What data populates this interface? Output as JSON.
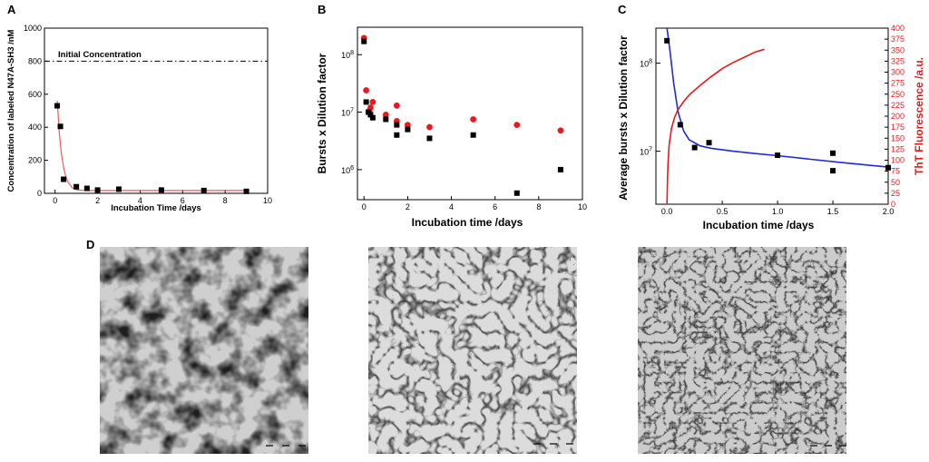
{
  "figure": {
    "panel_d_label": "D"
  },
  "colors": {
    "black": "#000000",
    "red": "#e8191d",
    "blue": "#1f2bd6",
    "fit": "#ee5a5a"
  },
  "chart_data": [
    {
      "panel": "A",
      "type": "scatter",
      "xlabel": "Incubation Time /days",
      "ylabel": "Concentration of labeled N47A-SH3 /nM",
      "xlim": [
        -0.5,
        10
      ],
      "ylim": [
        0,
        1000
      ],
      "xticks": [
        "0",
        "2",
        "4",
        "6",
        "8",
        "10"
      ],
      "yticks": [
        "0",
        "200",
        "400",
        "600",
        "800",
        "1000"
      ],
      "annotation": "Initial Concentration",
      "reference_line": 800,
      "series": [
        {
          "name": "data",
          "marker": "square",
          "color": "#000000",
          "x": [
            0.1,
            0.25,
            0.4,
            1.0,
            1.5,
            2.0,
            3.0,
            5.0,
            7.0,
            9.0
          ],
          "y": [
            530,
            405,
            85,
            40,
            30,
            20,
            25,
            20,
            17,
            12
          ]
        },
        {
          "name": "fit",
          "line": "exponential",
          "color": "#ee5a5a",
          "x": [
            0.1,
            0.2,
            0.3,
            0.4,
            0.5,
            0.6,
            0.8,
            1.0,
            1.3,
            1.6,
            2.0,
            3.0,
            4.0,
            5.0,
            6.0,
            7.0,
            8.0,
            9.0
          ],
          "y": [
            560,
            365,
            238,
            156,
            104,
            70,
            34,
            22,
            18,
            17,
            17,
            17,
            17,
            17,
            17,
            17,
            17,
            17
          ]
        }
      ]
    },
    {
      "panel": "B",
      "type": "scatter",
      "xlabel": "Incubation time /days",
      "ylabel": "Bursts x Dilution factor",
      "yscale": "log",
      "xlim": [
        -0.3,
        10
      ],
      "ylim": [
        300000,
        300000000
      ],
      "xticks": [
        "0",
        "2",
        "4",
        "6",
        "8",
        "10"
      ],
      "yticks": [
        {
          "base": "10",
          "exp": "6"
        },
        {
          "base": "10",
          "exp": "7"
        },
        {
          "base": "10",
          "exp": "8"
        }
      ],
      "series": [
        {
          "name": "black squares",
          "marker": "square",
          "color": "#000000",
          "x": [
            0.0,
            0.1,
            0.2,
            0.3,
            0.4,
            1.0,
            1.5,
            1.5,
            2.0,
            3.0,
            5.0,
            7.0,
            9.0
          ],
          "y": [
            170000000,
            15000000,
            10000000,
            9000000,
            8000000,
            7500000,
            6000000,
            4000000,
            5000000,
            3500000,
            4000000,
            390000,
            1000000
          ]
        },
        {
          "name": "red circles",
          "marker": "circle",
          "color": "#e8191d",
          "x": [
            0.0,
            0.1,
            0.25,
            0.3,
            0.4,
            1.0,
            1.5,
            1.5,
            2.0,
            3.0,
            5.0,
            7.0,
            9.0
          ],
          "y": [
            195000000,
            24000000,
            10500000,
            12000000,
            15000000,
            9000000,
            13000000,
            7000000,
            6000000,
            5500000,
            7500000,
            6000000,
            4800000
          ]
        }
      ]
    },
    {
      "panel": "C",
      "type": "scatter",
      "xlabel": "Incubation time /days",
      "ylabel": "Average bursts x Dilution factor",
      "ylabel_right": "ThT Fluorescence /a.u.",
      "yscale": "log",
      "xlim": [
        -0.1,
        2.0
      ],
      "ylim": [
        2500000,
        250000000
      ],
      "ylim_right": [
        0,
        400
      ],
      "xticks": [
        "0.0",
        "0.5",
        "1.0",
        "1.5",
        "2.0"
      ],
      "yticks": [
        {
          "base": "10",
          "exp": "7"
        },
        {
          "base": "10",
          "exp": "8"
        }
      ],
      "yticks_right": [
        "0",
        "25",
        "50",
        "75",
        "100",
        "125",
        "150",
        "175",
        "200",
        "225",
        "250",
        "275",
        "300",
        "325",
        "350",
        "375",
        "400"
      ],
      "series": [
        {
          "name": "bursts",
          "marker": "square",
          "color": "#000000",
          "x": [
            0.0,
            0.12,
            0.25,
            0.38,
            1.0,
            1.5,
            1.5,
            2.0
          ],
          "y": [
            180000000,
            20000000,
            11000000,
            12500000,
            9000000,
            9500000,
            6000000,
            6500000
          ]
        },
        {
          "name": "bursts fit",
          "line": "decay",
          "color": "#1f2bd6",
          "x": [
            0.0,
            0.03,
            0.06,
            0.1,
            0.15,
            0.2,
            0.3,
            0.4,
            0.6,
            0.8,
            1.0,
            1.3,
            1.6,
            2.0
          ],
          "y": [
            250000000,
            130000000,
            60000000,
            28000000,
            17000000,
            13500000,
            11500000,
            10800000,
            10000000,
            9400000,
            8900000,
            8100000,
            7400000,
            6600000
          ]
        },
        {
          "name": "ThT fluorescence",
          "axis": "right",
          "line": "rise",
          "color": "#e8191d",
          "x": [
            0.0,
            0.005,
            0.01,
            0.02,
            0.04,
            0.07,
            0.1,
            0.15,
            0.2,
            0.3,
            0.4,
            0.5,
            0.6,
            0.7,
            0.8,
            0.88
          ],
          "y": [
            0,
            60,
            95,
            135,
            172,
            198,
            215,
            233,
            248,
            270,
            290,
            308,
            322,
            334,
            346,
            352
          ]
        }
      ]
    }
  ]
}
